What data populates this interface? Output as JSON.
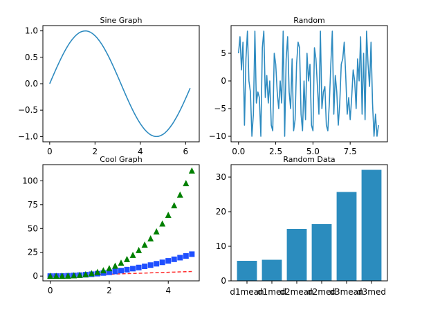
{
  "colors": {
    "line": "#2e8bc0",
    "bar": "#2b8cbe",
    "dash": "#ff2a2a",
    "square": "#1f4fff",
    "triangle": "#008000"
  },
  "chart_data": [
    {
      "type": "line",
      "title": "Sine Graph",
      "xlim": [
        -0.3,
        6.6
      ],
      "ylim": [
        -1.1,
        1.1
      ],
      "xticks": [
        0,
        2,
        4,
        6
      ],
      "yticks": [
        -1.0,
        -0.5,
        0.0,
        0.5,
        1.0
      ],
      "xticklabels": [
        "0",
        "2",
        "4",
        "6"
      ],
      "yticklabels": [
        "−1.0",
        "−0.5",
        "0.0",
        "0.5",
        "1.0"
      ],
      "series": [
        {
          "x": [
            0,
            0.1,
            0.2,
            0.3,
            0.4,
            0.5,
            0.6,
            0.7,
            0.8,
            0.9,
            1.0,
            1.1,
            1.2,
            1.3,
            1.4,
            1.5,
            1.6,
            1.7,
            1.8,
            1.9,
            2.0,
            2.1,
            2.2,
            2.3,
            2.4,
            2.5,
            2.6,
            2.7,
            2.8,
            2.9,
            3.0,
            3.1,
            3.2,
            3.3,
            3.4,
            3.5,
            3.6,
            3.7,
            3.8,
            3.9,
            4.0,
            4.1,
            4.2,
            4.3,
            4.4,
            4.5,
            4.6,
            4.7,
            4.8,
            4.9,
            5.0,
            5.1,
            5.2,
            5.3,
            5.4,
            5.5,
            5.6,
            5.7,
            5.8,
            5.9,
            6.0,
            6.1,
            6.2
          ],
          "y": [
            0,
            0.1,
            0.199,
            0.296,
            0.389,
            0.479,
            0.565,
            0.644,
            0.717,
            0.783,
            0.841,
            0.891,
            0.932,
            0.964,
            0.985,
            0.997,
            1.0,
            0.992,
            0.974,
            0.946,
            0.909,
            0.863,
            0.808,
            0.746,
            0.675,
            0.598,
            0.516,
            0.427,
            0.335,
            0.239,
            0.141,
            0.042,
            -0.058,
            -0.158,
            -0.256,
            -0.351,
            -0.443,
            -0.53,
            -0.612,
            -0.688,
            -0.757,
            -0.818,
            -0.872,
            -0.916,
            -0.952,
            -0.978,
            -0.994,
            -1.0,
            -0.996,
            -0.982,
            -0.959,
            -0.926,
            -0.883,
            -0.832,
            -0.773,
            -0.706,
            -0.631,
            -0.551,
            -0.465,
            -0.374,
            -0.279,
            -0.182,
            -0.083
          ]
        }
      ]
    },
    {
      "type": "line",
      "title": "Random",
      "xlim": [
        -0.5,
        10.0
      ],
      "ylim": [
        -11,
        10
      ],
      "xticks": [
        0,
        2.5,
        5.0,
        7.5
      ],
      "yticks": [
        -10,
        -5,
        0,
        5
      ],
      "xticklabels": [
        "0.0",
        "2.5",
        "5.0",
        "7.5"
      ],
      "yticklabels": [
        "−10",
        "−5",
        "0",
        "5"
      ],
      "series": [
        {
          "x": [
            0,
            0.1,
            0.2,
            0.3,
            0.4,
            0.5,
            0.6,
            0.7,
            0.8,
            0.9,
            1.0,
            1.1,
            1.2,
            1.3,
            1.4,
            1.5,
            1.6,
            1.7,
            1.8,
            1.9,
            2.0,
            2.1,
            2.2,
            2.3,
            2.4,
            2.5,
            2.6,
            2.7,
            2.8,
            2.9,
            3.0,
            3.1,
            3.2,
            3.3,
            3.4,
            3.5,
            3.6,
            3.7,
            3.8,
            3.9,
            4.0,
            4.1,
            4.2,
            4.3,
            4.4,
            4.5,
            4.6,
            4.7,
            4.8,
            4.9,
            5.0,
            5.1,
            5.2,
            5.3,
            5.4,
            5.5,
            5.6,
            5.7,
            5.8,
            5.9,
            6.0,
            6.1,
            6.2,
            6.3,
            6.4,
            6.5,
            6.6,
            6.7,
            6.8,
            6.9,
            7.0,
            7.1,
            7.2,
            7.3,
            7.4,
            7.5,
            7.6,
            7.7,
            7.8,
            7.9,
            8.0,
            8.1,
            8.2,
            8.3,
            8.4,
            8.5,
            8.6,
            8.7,
            8.8,
            8.9,
            9.0,
            9.1,
            9.2,
            9.3,
            9.4
          ],
          "y": [
            5,
            8,
            2,
            7,
            -8,
            4,
            9,
            0,
            -2,
            -10,
            -6,
            9,
            -4,
            -2,
            -3,
            -10,
            6,
            9,
            -3,
            1,
            -4,
            0,
            -8,
            -9,
            5,
            3,
            -2,
            -5,
            0,
            -4,
            9,
            -10,
            4,
            8,
            -2,
            -5,
            4,
            -9,
            -7,
            3,
            7,
            6,
            -6,
            -9,
            0,
            -7,
            5,
            0,
            3,
            -8,
            -9,
            6,
            4,
            -1,
            -6,
            9,
            -5,
            -2,
            -1,
            -8,
            -9,
            -4,
            3,
            9,
            -6,
            1,
            -2,
            -8,
            -4,
            3,
            4,
            7,
            1,
            -6,
            -3,
            -7,
            -3,
            2,
            0,
            -5,
            4,
            0,
            8,
            -6,
            5,
            -7,
            9,
            3,
            -1,
            7,
            -4,
            -10,
            -6,
            -10,
            -8
          ]
        }
      ]
    },
    {
      "type": "scatter",
      "title": "Cool Graph",
      "xlim": [
        -0.25,
        5.05
      ],
      "ylim": [
        -5,
        117
      ],
      "xticks": [
        0,
        2,
        4
      ],
      "yticks": [
        0,
        25,
        50,
        75,
        100
      ],
      "xticklabels": [
        "0",
        "2",
        "4"
      ],
      "yticklabels": [
        "0",
        "25",
        "50",
        "75",
        "100"
      ],
      "x": [
        0,
        0.2,
        0.4,
        0.6,
        0.8,
        1.0,
        1.2,
        1.4,
        1.6,
        1.8,
        2.0,
        2.2,
        2.4,
        2.6,
        2.8,
        3.0,
        3.2,
        3.4,
        3.6,
        3.8,
        4.0,
        4.2,
        4.4,
        4.6,
        4.8
      ],
      "series": [
        {
          "marker": "dashed-line",
          "y": [
            0,
            0.2,
            0.4,
            0.6,
            0.8,
            1.0,
            1.2,
            1.4,
            1.6,
            1.8,
            2.0,
            2.2,
            2.4,
            2.6,
            2.8,
            3.0,
            3.2,
            3.4,
            3.6,
            3.8,
            4.0,
            4.2,
            4.4,
            4.6,
            4.8
          ]
        },
        {
          "marker": "square",
          "y": [
            0,
            0.04,
            0.16,
            0.36,
            0.64,
            1.0,
            1.44,
            1.96,
            2.56,
            3.24,
            4.0,
            4.84,
            5.76,
            6.76,
            7.84,
            9.0,
            10.24,
            11.56,
            12.96,
            14.44,
            16.0,
            17.64,
            19.36,
            21.16,
            23.04
          ]
        },
        {
          "marker": "triangle",
          "y": [
            0,
            0.008,
            0.064,
            0.216,
            0.512,
            1.0,
            1.728,
            2.744,
            4.096,
            5.832,
            8.0,
            10.648,
            13.824,
            17.576,
            21.952,
            27.0,
            32.768,
            39.304,
            46.656,
            54.872,
            64.0,
            74.088,
            85.184,
            97.336,
            110.592
          ]
        }
      ]
    },
    {
      "type": "bar",
      "title": "Random Data",
      "ylim": [
        0,
        33.6
      ],
      "yticks": [
        0,
        10,
        20,
        30
      ],
      "yticklabels": [
        "0",
        "10",
        "20",
        "30"
      ],
      "categories": [
        "d1mean",
        "d1med",
        "d2mean",
        "d2med",
        "d3mean",
        "d3med"
      ],
      "values": [
        5.8,
        6.1,
        15.0,
        16.4,
        25.7,
        32.1
      ]
    }
  ]
}
